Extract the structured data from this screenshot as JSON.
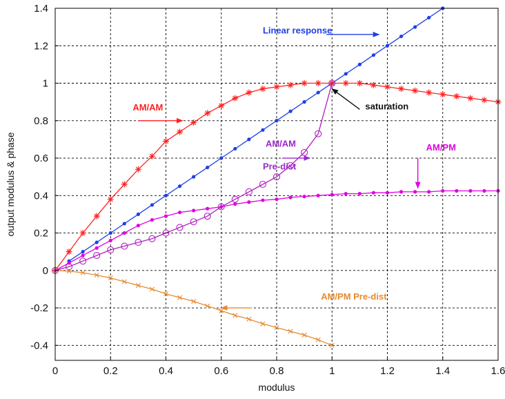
{
  "chart_data": {
    "type": "line",
    "xlabel": "modulus",
    "ylabel": "output modulus & phase",
    "xlim": [
      0,
      1.6
    ],
    "ylim": [
      -0.48,
      1.4
    ],
    "xticks": [
      "0",
      "0.2",
      "0.4",
      "0.6",
      "0.8",
      "1",
      "1.2",
      "1.4",
      "1.6"
    ],
    "yticks": [
      "-0.4",
      "-0.2",
      "0",
      "0.2",
      "0.4",
      "0.6",
      "0.8",
      "1",
      "1.2",
      "1.4"
    ],
    "grid": true,
    "series": [
      {
        "name": "Linear response",
        "color": "#1f3fe6",
        "marker": "dot",
        "x": [
          0.05,
          0.1,
          0.15,
          0.2,
          0.25,
          0.3,
          0.35,
          0.4,
          0.45,
          0.5,
          0.55,
          0.6,
          0.65,
          0.7,
          0.75,
          0.8,
          0.85,
          0.9,
          0.95,
          1.0,
          1.05,
          1.1,
          1.15,
          1.2,
          1.25,
          1.3,
          1.35,
          1.4
        ],
        "y": [
          0.05,
          0.1,
          0.15,
          0.2,
          0.25,
          0.3,
          0.35,
          0.4,
          0.45,
          0.5,
          0.55,
          0.6,
          0.65,
          0.7,
          0.75,
          0.8,
          0.85,
          0.9,
          0.95,
          1.0,
          1.05,
          1.1,
          1.15,
          1.2,
          1.25,
          1.3,
          1.35,
          1.4
        ]
      },
      {
        "name": "AM/AM",
        "color": "#ff2020",
        "marker": "star",
        "x": [
          0,
          0.05,
          0.1,
          0.15,
          0.2,
          0.25,
          0.3,
          0.35,
          0.4,
          0.45,
          0.5,
          0.55,
          0.6,
          0.65,
          0.7,
          0.75,
          0.8,
          0.85,
          0.9,
          0.95,
          1.0,
          1.05,
          1.1,
          1.15,
          1.2,
          1.25,
          1.3,
          1.35,
          1.4,
          1.45,
          1.5,
          1.55,
          1.6
        ],
        "y": [
          0,
          0.1,
          0.2,
          0.29,
          0.38,
          0.46,
          0.54,
          0.61,
          0.69,
          0.74,
          0.79,
          0.84,
          0.88,
          0.92,
          0.95,
          0.97,
          0.98,
          0.99,
          1.0,
          1.0,
          1.0,
          1.0,
          1.0,
          0.99,
          0.98,
          0.97,
          0.96,
          0.95,
          0.94,
          0.93,
          0.92,
          0.91,
          0.9
        ]
      },
      {
        "name": "AM/PM",
        "color": "#e000e0",
        "marker": "dot",
        "x": [
          0,
          0.05,
          0.1,
          0.15,
          0.2,
          0.25,
          0.3,
          0.35,
          0.4,
          0.45,
          0.5,
          0.55,
          0.6,
          0.65,
          0.7,
          0.75,
          0.8,
          0.85,
          0.9,
          0.95,
          1.0,
          1.05,
          1.1,
          1.15,
          1.2,
          1.25,
          1.3,
          1.35,
          1.4,
          1.45,
          1.5,
          1.55,
          1.6
        ],
        "y": [
          0,
          0.04,
          0.08,
          0.12,
          0.16,
          0.2,
          0.24,
          0.27,
          0.29,
          0.31,
          0.32,
          0.33,
          0.34,
          0.355,
          0.365,
          0.375,
          0.38,
          0.39,
          0.395,
          0.4,
          0.405,
          0.41,
          0.41,
          0.415,
          0.415,
          0.42,
          0.42,
          0.42,
          0.425,
          0.425,
          0.425,
          0.425,
          0.425
        ]
      },
      {
        "name": "AM/AM Pre-dist",
        "color": "#b020c0",
        "marker": "circle",
        "x": [
          0,
          0.05,
          0.1,
          0.15,
          0.2,
          0.25,
          0.3,
          0.35,
          0.4,
          0.45,
          0.5,
          0.55,
          0.6,
          0.65,
          0.7,
          0.75,
          0.8,
          0.85,
          0.9,
          0.95,
          1.0
        ],
        "y": [
          0,
          0.02,
          0.05,
          0.08,
          0.11,
          0.13,
          0.15,
          0.17,
          0.2,
          0.23,
          0.26,
          0.29,
          0.34,
          0.38,
          0.42,
          0.46,
          0.5,
          0.56,
          0.63,
          0.73,
          1.0
        ]
      },
      {
        "name": "AM/PM Pre-dist",
        "color": "#e68a2e",
        "marker": "x",
        "x": [
          0,
          0.05,
          0.1,
          0.15,
          0.2,
          0.25,
          0.3,
          0.35,
          0.4,
          0.45,
          0.5,
          0.55,
          0.6,
          0.65,
          0.7,
          0.75,
          0.8,
          0.85,
          0.9,
          0.95,
          1.0
        ],
        "y": [
          0,
          -0.004,
          -0.012,
          -0.025,
          -0.04,
          -0.06,
          -0.08,
          -0.1,
          -0.125,
          -0.145,
          -0.165,
          -0.19,
          -0.215,
          -0.24,
          -0.26,
          -0.285,
          -0.305,
          -0.325,
          -0.345,
          -0.37,
          -0.4
        ]
      }
    ],
    "annotations": [
      {
        "text": "Linear response",
        "color": "#1f3fe6",
        "text_at": [
          0.75,
          1.265
        ],
        "arrow_from": [
          0.98,
          1.26
        ],
        "arrow_to": [
          1.17,
          1.26
        ]
      },
      {
        "text": "AM/AM",
        "color": "#ff2020",
        "text_at": [
          0.28,
          0.855
        ],
        "arrow_from": [
          0.3,
          0.8
        ],
        "arrow_to": [
          0.46,
          0.8
        ]
      },
      {
        "text": "saturation",
        "color": "#111111",
        "text_at": [
          1.12,
          0.86
        ],
        "arrow_from": [
          1.1,
          0.86
        ],
        "arrow_to": [
          1.0,
          0.97
        ]
      },
      {
        "text": "AM/AM",
        "color": "#9a2ac8",
        "text_at": [
          0.76,
          0.66
        ]
      },
      {
        "text": "Pre-dist",
        "color": "#9a2ac8",
        "text_at": [
          0.75,
          0.54
        ],
        "arrow_from": [
          0.82,
          0.6
        ],
        "arrow_to": [
          0.92,
          0.6
        ]
      },
      {
        "text": "AM/PM",
        "color": "#e000e0",
        "text_at": [
          1.34,
          0.64
        ],
        "arrow_from": [
          1.31,
          0.6
        ],
        "arrow_to": [
          1.31,
          0.44
        ]
      },
      {
        "text": "AM/PM Pre-dist",
        "color": "#e68a2e",
        "text_at": [
          0.96,
          -0.155
        ],
        "arrow_from": [
          0.71,
          -0.2
        ],
        "arrow_to": [
          0.6,
          -0.2
        ]
      }
    ]
  }
}
